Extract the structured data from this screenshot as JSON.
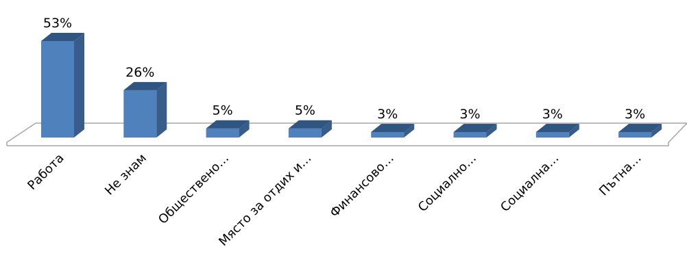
{
  "chart_data": {
    "type": "bar",
    "style": "3d-column",
    "categories": [
      "Работа",
      "Не знам",
      "Обществено…",
      "Място за отдих и…",
      "Финансово…",
      "Социално…",
      "Социална…",
      "Пътна…"
    ],
    "values": [
      53,
      26,
      5,
      5,
      3,
      3,
      3,
      3
    ],
    "value_labels": [
      "53%",
      "26%",
      "5%",
      "5%",
      "3%",
      "3%",
      "3%",
      "3%"
    ],
    "unit": "%",
    "title": "",
    "xlabel": "",
    "ylabel": "",
    "ylim": [
      0,
      53
    ],
    "grid": false,
    "legend": "none",
    "colors": {
      "bar_front": "#4F81BD",
      "bar_side": "#385D8A",
      "bar_top": "#2F5582",
      "floor_line": "#A6A6A6"
    }
  }
}
